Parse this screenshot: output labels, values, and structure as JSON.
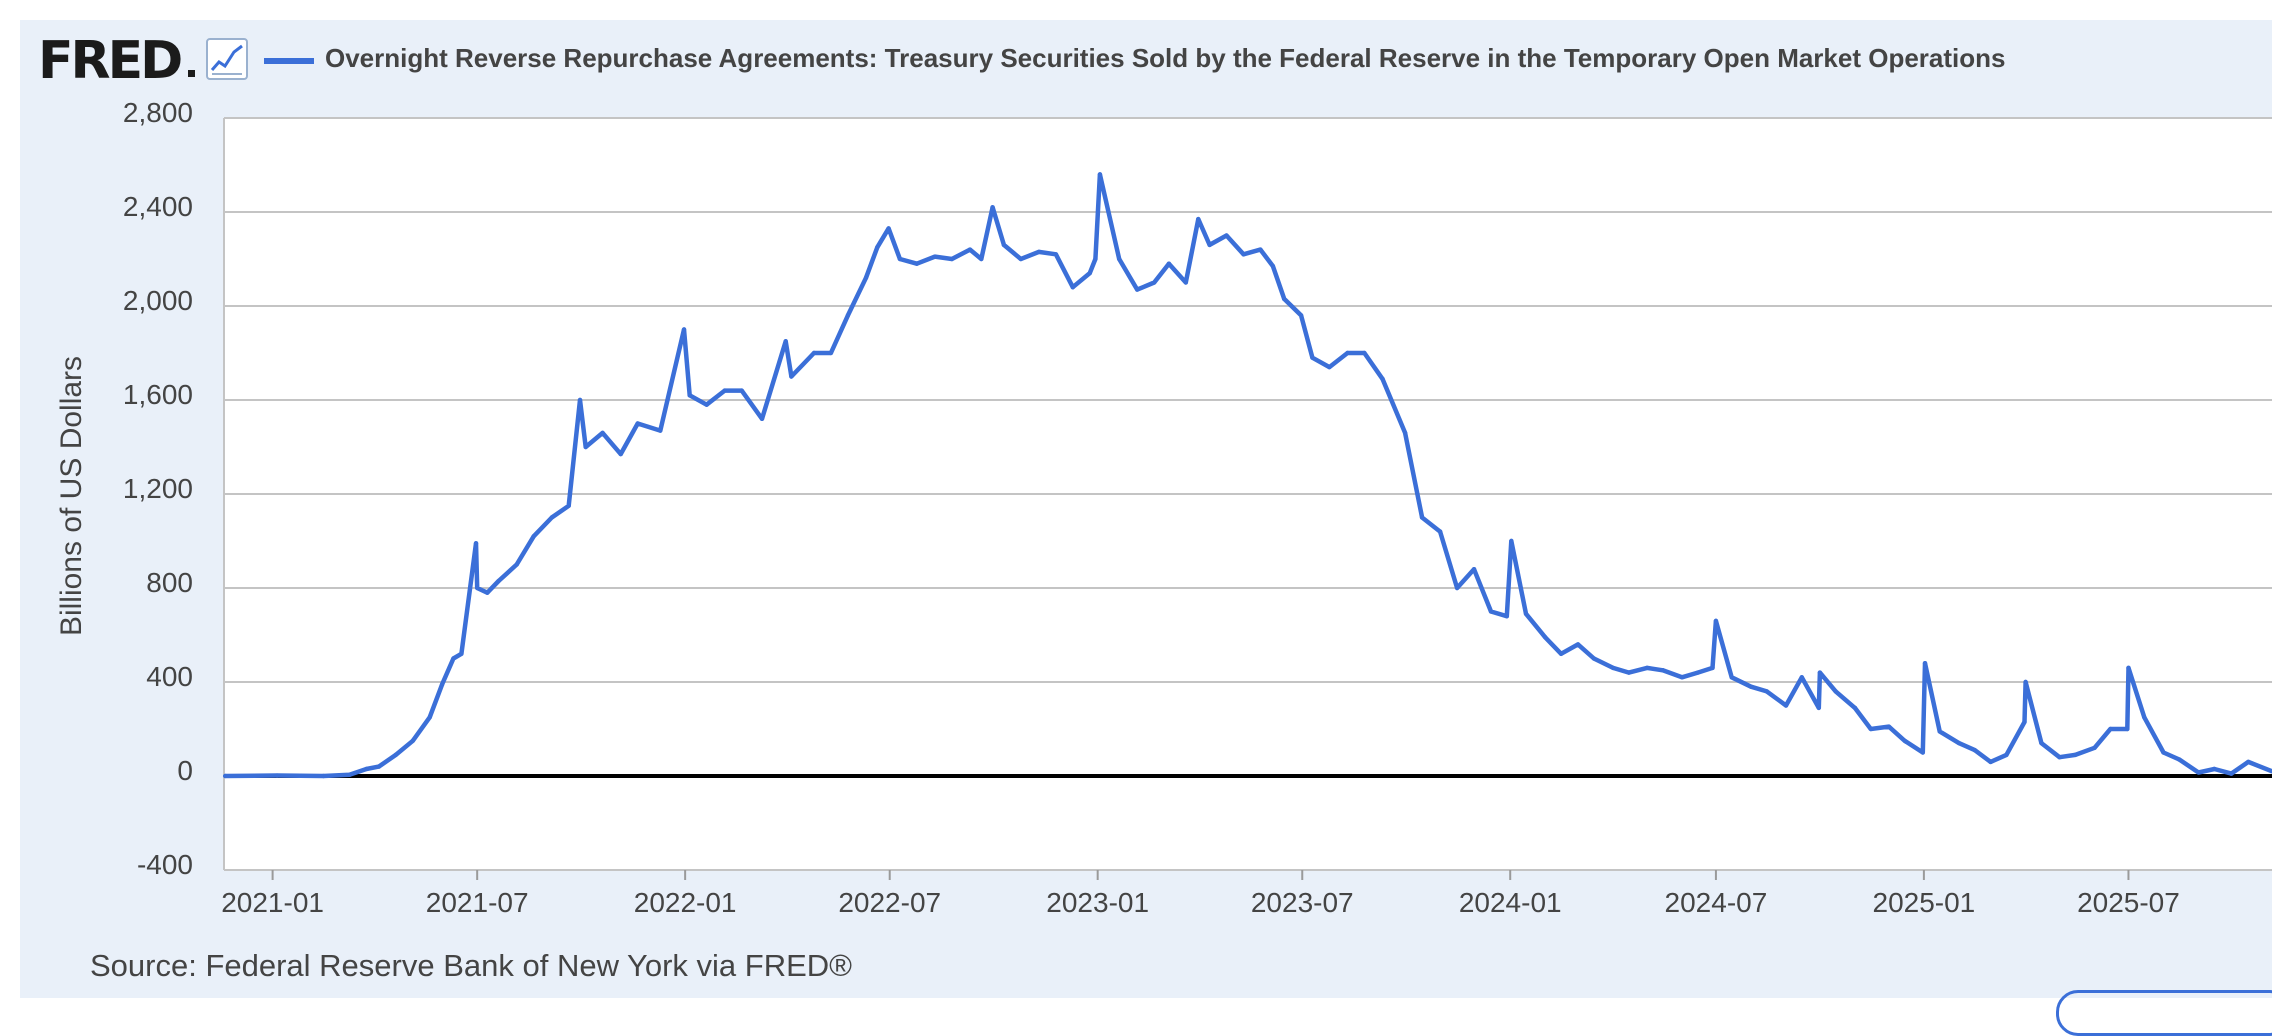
{
  "header": {
    "logo_text": "FRED",
    "logo_icon": "line-chart-icon"
  },
  "source_text": "Source: Federal Reserve Bank of New York via FRED®",
  "colors": {
    "series": "#3b6fd8",
    "background": "#e9f0f9",
    "plot_background": "#ffffff",
    "gridline": "#c4c4c4",
    "zero_line": "#000000"
  },
  "chart_data": {
    "type": "line",
    "title": "",
    "xlabel": "",
    "ylabel": "Billions of US Dollars",
    "ylim": [
      -400,
      2800
    ],
    "xlim": [
      "2020-11-19",
      "2025-11-05"
    ],
    "grid": true,
    "legend": "top-left",
    "y_ticks": [
      -400,
      0,
      400,
      800,
      1200,
      1600,
      2000,
      2400,
      2800
    ],
    "y_tick_labels": [
      "-400",
      "0",
      "400",
      "800",
      "1,200",
      "1,600",
      "2,000",
      "2,400",
      "2,800"
    ],
    "x_ticks": [
      "2021-01-01",
      "2021-07-01",
      "2022-01-01",
      "2022-07-01",
      "2023-01-01",
      "2023-07-01",
      "2024-01-01",
      "2024-07-01",
      "2025-01-01",
      "2025-07-01"
    ],
    "x_tick_labels": [
      "2021-01",
      "2021-07",
      "2022-01",
      "2022-07",
      "2023-01",
      "2023-07",
      "2024-01",
      "2024-07",
      "2025-01",
      "2025-07"
    ],
    "series": [
      {
        "name": "Overnight Reverse Repurchase Agreements: Treasury Securities Sold by the Federal Reserve in the Temporary Open Market Operations",
        "x": [
          "2020-11-20",
          "2021-01-05",
          "2021-02-15",
          "2021-03-10",
          "2021-03-25",
          "2021-04-05",
          "2021-04-20",
          "2021-05-05",
          "2021-05-20",
          "2021-05-31",
          "2021-06-10",
          "2021-06-17",
          "2021-06-30",
          "2021-07-01",
          "2021-07-10",
          "2021-07-20",
          "2021-08-05",
          "2021-08-20",
          "2021-09-05",
          "2021-09-20",
          "2021-09-30",
          "2021-10-05",
          "2021-10-20",
          "2021-11-05",
          "2021-11-20",
          "2021-12-10",
          "2021-12-31",
          "2022-01-05",
          "2022-01-20",
          "2022-02-05",
          "2022-02-20",
          "2022-03-10",
          "2022-03-31",
          "2022-04-05",
          "2022-04-25",
          "2022-05-10",
          "2022-05-25",
          "2022-06-10",
          "2022-06-20",
          "2022-06-30",
          "2022-07-10",
          "2022-07-25",
          "2022-08-10",
          "2022-08-25",
          "2022-09-10",
          "2022-09-20",
          "2022-09-30",
          "2022-10-10",
          "2022-10-25",
          "2022-11-10",
          "2022-11-25",
          "2022-12-10",
          "2022-12-25",
          "2022-12-30",
          "2023-01-03",
          "2023-01-20",
          "2023-02-05",
          "2023-02-20",
          "2023-03-05",
          "2023-03-20",
          "2023-03-31",
          "2023-04-10",
          "2023-04-25",
          "2023-05-10",
          "2023-05-25",
          "2023-06-05",
          "2023-06-15",
          "2023-06-30",
          "2023-07-10",
          "2023-07-25",
          "2023-08-10",
          "2023-08-25",
          "2023-09-10",
          "2023-09-30",
          "2023-10-15",
          "2023-10-31",
          "2023-11-15",
          "2023-11-30",
          "2023-12-15",
          "2023-12-29",
          "2024-01-02",
          "2024-01-15",
          "2024-02-01",
          "2024-02-15",
          "2024-03-01",
          "2024-03-15",
          "2024-04-01",
          "2024-04-15",
          "2024-05-01",
          "2024-05-15",
          "2024-06-01",
          "2024-06-15",
          "2024-06-28",
          "2024-07-01",
          "2024-07-15",
          "2024-08-01",
          "2024-08-15",
          "2024-09-01",
          "2024-09-15",
          "2024-09-30",
          "2024-10-01",
          "2024-10-15",
          "2024-11-01",
          "2024-11-15",
          "2024-12-01",
          "2024-12-15",
          "2024-12-31",
          "2025-01-02",
          "2025-01-15",
          "2025-02-01",
          "2025-02-15",
          "2025-03-01",
          "2025-03-15",
          "2025-03-31",
          "2025-04-01",
          "2025-04-15",
          "2025-05-01",
          "2025-05-15",
          "2025-06-01",
          "2025-06-15",
          "2025-06-30",
          "2025-07-01",
          "2025-07-15",
          "2025-08-01",
          "2025-08-15",
          "2025-09-01",
          "2025-09-15",
          "2025-09-30",
          "2025-10-15",
          "2025-11-05"
        ],
        "values": [
          0,
          2,
          0,
          5,
          30,
          40,
          90,
          150,
          250,
          390,
          500,
          520,
          990,
          800,
          780,
          830,
          900,
          1020,
          1100,
          1150,
          1600,
          1400,
          1460,
          1370,
          1500,
          1470,
          1900,
          1620,
          1580,
          1640,
          1640,
          1520,
          1850,
          1700,
          1800,
          1800,
          1960,
          2120,
          2250,
          2330,
          2200,
          2180,
          2210,
          2200,
          2240,
          2200,
          2420,
          2260,
          2200,
          2230,
          2220,
          2080,
          2140,
          2200,
          2560,
          2200,
          2070,
          2100,
          2180,
          2100,
          2370,
          2260,
          2300,
          2220,
          2240,
          2170,
          2030,
          1960,
          1780,
          1740,
          1800,
          1800,
          1690,
          1460,
          1100,
          1040,
          800,
          880,
          700,
          680,
          1000,
          690,
          590,
          520,
          560,
          500,
          460,
          440,
          460,
          450,
          420,
          440,
          460,
          660,
          420,
          380,
          360,
          300,
          420,
          290,
          440,
          360,
          290,
          200,
          210,
          150,
          100,
          480,
          190,
          140,
          110,
          60,
          90,
          230,
          400,
          140,
          80,
          90,
          120,
          200,
          200,
          460,
          250,
          100,
          70,
          15,
          30,
          10,
          60,
          20
        ]
      }
    ]
  }
}
